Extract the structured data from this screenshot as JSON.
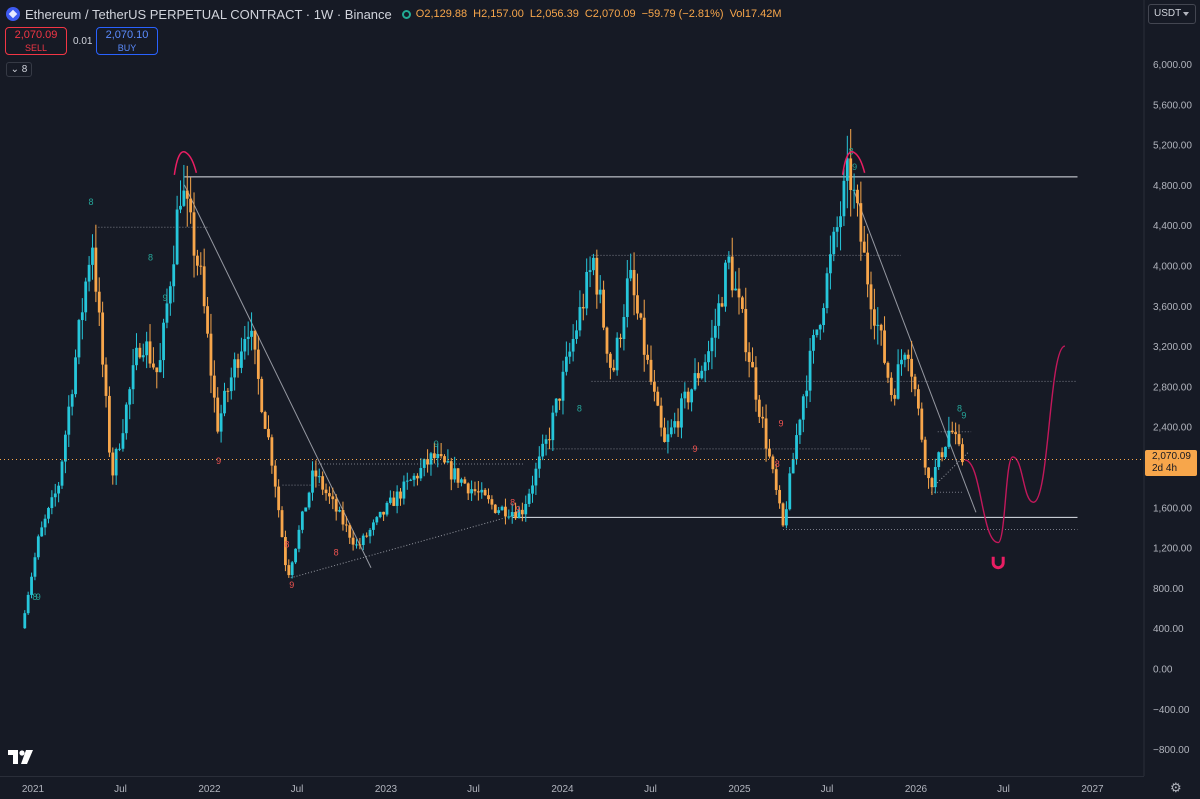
{
  "header": {
    "symbol": "Ethereum / TetherUS PERPETUAL CONTRACT · 1W · Binance",
    "open": "O2,129.88",
    "high": "H2,157.00",
    "low": "L2,056.39",
    "close": "C2,070.09",
    "change": "−59.79 (−2.81%)",
    "volume": "Vol17.42M"
  },
  "trade": {
    "sell_price": "2,070.09",
    "sell_label": "SELL",
    "buy_price": "2,070.10",
    "buy_label": "BUY",
    "spread": "0.01",
    "indicator_count": "8"
  },
  "price_scale": {
    "currency": "USDT",
    "ticks": [
      "6,000.00",
      "5,600.00",
      "5,200.00",
      "4,800.00",
      "4,400.00",
      "4,000.00",
      "3,600.00",
      "3,200.00",
      "2,800.00",
      "2,400.00",
      "2,000.00",
      "1,600.00",
      "1,200.00",
      "800.00",
      "400.00",
      "0.00",
      "−400.00",
      "−800.00"
    ],
    "last_price": "2,070.09",
    "countdown": "2d 4h"
  },
  "time_axis": {
    "labels": [
      "2021",
      "Jul",
      "2022",
      "Jul",
      "2023",
      "Jul",
      "2024",
      "Jul",
      "2025",
      "Jul",
      "2026",
      "Jul",
      "2027"
    ]
  },
  "colors": {
    "background": "#161a25",
    "up_candle": "#26c6da",
    "down_candle": "#f7a64b",
    "annotation": "#c2185b",
    "lines": "#ffffff"
  },
  "chart_data": {
    "type": "candlestick",
    "title": "Ethereum / TetherUS PERPETUAL CONTRACT · 1W · Binance",
    "timeframe": "1W",
    "ylim": [
      -900,
      6300
    ],
    "x_range": [
      "2020-12",
      "2027-01"
    ],
    "log_scale": false,
    "grid": false,
    "last_price": 2070.09,
    "price_path": [
      {
        "date": "2020-12-15",
        "price": 400
      },
      {
        "date": "2021-01-20",
        "price": 1300
      },
      {
        "date": "2021-03-01",
        "price": 1800
      },
      {
        "date": "2021-05-10",
        "price": 4300
      },
      {
        "date": "2021-06-20",
        "price": 1900
      },
      {
        "date": "2021-08-20",
        "price": 3300
      },
      {
        "date": "2021-09-25",
        "price": 2900
      },
      {
        "date": "2021-11-10",
        "price": 4800
      },
      {
        "date": "2021-12-20",
        "price": 3900
      },
      {
        "date": "2022-01-24",
        "price": 2400
      },
      {
        "date": "2022-03-28",
        "price": 3450
      },
      {
        "date": "2022-05-20",
        "price": 2000
      },
      {
        "date": "2022-06-18",
        "price": 900
      },
      {
        "date": "2022-08-12",
        "price": 1950
      },
      {
        "date": "2022-11-10",
        "price": 1200
      },
      {
        "date": "2023-01-20",
        "price": 1650
      },
      {
        "date": "2023-04-15",
        "price": 2100
      },
      {
        "date": "2023-08-20",
        "price": 1600
      },
      {
        "date": "2023-10-15",
        "price": 1550
      },
      {
        "date": "2023-12-10",
        "price": 2300
      },
      {
        "date": "2024-03-12",
        "price": 4050
      },
      {
        "date": "2024-04-20",
        "price": 2900
      },
      {
        "date": "2024-05-25",
        "price": 3900
      },
      {
        "date": "2024-08-05",
        "price": 2200
      },
      {
        "date": "2024-11-10",
        "price": 3200
      },
      {
        "date": "2024-12-16",
        "price": 4050
      },
      {
        "date": "2025-01-20",
        "price": 3300
      },
      {
        "date": "2025-04-08",
        "price": 1400
      },
      {
        "date": "2025-05-15",
        "price": 2600
      },
      {
        "date": "2025-08-23",
        "price": 4950
      },
      {
        "date": "2025-09-25",
        "price": 4000
      },
      {
        "date": "2025-11-20",
        "price": 2700
      },
      {
        "date": "2025-12-20",
        "price": 3300
      },
      {
        "date": "2026-02-05",
        "price": 1800
      },
      {
        "date": "2026-03-20",
        "price": 2400
      },
      {
        "date": "2026-04-12",
        "price": 2070
      }
    ],
    "horizontal_levels": [
      {
        "price": 4880,
        "style": "solid",
        "from": "2021-11-10",
        "to": "2026-12-01"
      },
      {
        "price": 4380,
        "style": "dotted",
        "from": "2021-05-10",
        "to": "2022-01-01"
      },
      {
        "price": 4100,
        "style": "dotted",
        "from": "2024-03-01",
        "to": "2025-12-01"
      },
      {
        "price": 2850,
        "style": "dotted",
        "from": "2024-03-01",
        "to": "2026-12-01"
      },
      {
        "price": 2180,
        "style": "dotted",
        "from": "2023-12-01",
        "to": "2025-10-01"
      },
      {
        "price": 2350,
        "style": "dotted",
        "from": "2026-02-15",
        "to": "2026-04-25"
      },
      {
        "price": 2030,
        "style": "dotted",
        "from": "2022-08-01",
        "to": "2023-10-15"
      },
      {
        "price": 1820,
        "style": "dotted",
        "from": "2022-06-01",
        "to": "2022-08-20"
      },
      {
        "price": 1500,
        "style": "solid",
        "from": "2023-09-20",
        "to": "2026-12-01"
      },
      {
        "price": 1380,
        "style": "dotted",
        "from": "2025-04-01",
        "to": "2026-12-01"
      },
      {
        "price": 1750,
        "style": "dotted",
        "from": "2026-02-01",
        "to": "2026-04-10"
      }
    ],
    "trend_lines": [
      {
        "from": {
          "date": "2021-11-10",
          "price": 4800
        },
        "to": {
          "date": "2022-12-01",
          "price": 1000
        }
      },
      {
        "from": {
          "date": "2025-08-25",
          "price": 4750
        },
        "to": {
          "date": "2026-05-05",
          "price": 1550
        }
      },
      {
        "from": {
          "date": "2022-06-18",
          "price": 900
        },
        "to": {
          "date": "2023-10-15",
          "price": 1550
        },
        "style": "dotted"
      },
      {
        "from": {
          "date": "2026-02-05",
          "price": 1800
        },
        "to": {
          "date": "2026-04-20",
          "price": 2150
        },
        "style": "dotted"
      }
    ],
    "projection": [
      {
        "date": "2026-04-12",
        "price": 2070
      },
      {
        "date": "2026-06-20",
        "price": 1250
      },
      {
        "date": "2026-07-20",
        "price": 2100
      },
      {
        "date": "2026-09-01",
        "price": 1650
      },
      {
        "date": "2026-11-05",
        "price": 3200
      }
    ],
    "sequential_counts": [
      {
        "label": "8",
        "date": "2021-05-01",
        "price": 4600,
        "color": "green"
      },
      {
        "label": "8",
        "date": "2021-09-01",
        "price": 4050,
        "color": "green"
      },
      {
        "label": "9",
        "date": "2021-10-01",
        "price": 3650,
        "color": "green"
      },
      {
        "label": "9",
        "date": "2022-01-20",
        "price": 2030,
        "color": "red"
      },
      {
        "label": "8",
        "date": "2022-06-10",
        "price": 1200,
        "color": "red"
      },
      {
        "label": "9",
        "date": "2022-06-20",
        "price": 800,
        "color": "red"
      },
      {
        "label": "8",
        "date": "2022-09-20",
        "price": 1120,
        "color": "red"
      },
      {
        "label": "9",
        "date": "2023-04-15",
        "price": 2200,
        "color": "green"
      },
      {
        "label": "8",
        "date": "2023-09-20",
        "price": 1620,
        "color": "red"
      },
      {
        "label": "9",
        "date": "2023-10-01",
        "price": 1550,
        "color": "red"
      },
      {
        "label": "8",
        "date": "2024-02-05",
        "price": 2550,
        "color": "green"
      },
      {
        "label": "9",
        "date": "2024-10-01",
        "price": 2150,
        "color": "red"
      },
      {
        "label": "8",
        "date": "2025-03-20",
        "price": 2000,
        "color": "red"
      },
      {
        "label": "9",
        "date": "2025-03-28",
        "price": 2400,
        "color": "red"
      },
      {
        "label": "8",
        "date": "2025-08-20",
        "price": 5100,
        "color": "green"
      },
      {
        "label": "9",
        "date": "2025-08-27",
        "price": 4950,
        "color": "green"
      },
      {
        "label": "8",
        "date": "2026-04-01",
        "price": 2550,
        "color": "green"
      },
      {
        "label": "9",
        "date": "2026-04-10",
        "price": 2480,
        "color": "green"
      },
      {
        "label": "8",
        "date": "2021-01-05",
        "price": 680,
        "color": "green"
      },
      {
        "label": "9",
        "date": "2021-01-12",
        "price": 680,
        "color": "green"
      }
    ],
    "peak_markers": [
      "2021-11-10",
      "2025-08-23"
    ],
    "magnet_marker": {
      "date": "2026-06-20",
      "price": 1050
    }
  }
}
